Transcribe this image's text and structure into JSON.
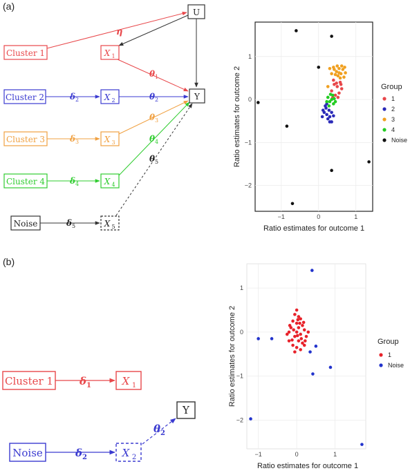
{
  "panels": [
    {
      "label": "(a)",
      "diagram": {
        "nodes": {
          "cluster1": "Cluster 1",
          "cluster2": "Cluster 2",
          "cluster3": "Cluster 3",
          "cluster4": "Cluster 4",
          "noise": "Noise",
          "x1": "X",
          "x1_sub": "1",
          "x2": "X",
          "x2_sub": "2",
          "x3": "X",
          "x3_sub": "3",
          "x4": "X",
          "x4_sub": "4",
          "x5": "X",
          "x5_sub": "5",
          "u": "U",
          "y": "Y"
        },
        "edge_labels": {
          "eta": "η",
          "delta2": "δ",
          "delta2_sub": "2",
          "delta3": "δ",
          "delta3_sub": "3",
          "delta4": "δ",
          "delta4_sub": "4",
          "delta5": "δ",
          "delta5_sub": "5",
          "theta1": "θ",
          "theta1_sub": "1",
          "theta2": "θ",
          "theta2_sub": "2",
          "theta3": "θ",
          "theta3_sub": "3",
          "theta4": "θ",
          "theta4_sub": "4",
          "theta5": "θ",
          "theta5_sub": "5"
        },
        "colors": {
          "cluster1": "#e8474a",
          "cluster2": "#3a3ad0",
          "cluster3": "#f0a040",
          "cluster4": "#2ecc2e",
          "noise": "#222222"
        }
      }
    },
    {
      "label": "(b)",
      "diagram": {
        "nodes": {
          "cluster1": "Cluster 1",
          "noise": "Noise",
          "x1": "X",
          "x1_sub": "1",
          "x2": "X",
          "x2_sub": "2",
          "y": "Y"
        },
        "edge_labels": {
          "delta1": "δ",
          "delta1_sub": "1",
          "delta2": "δ",
          "delta2_sub": "2",
          "theta2": "θ",
          "theta2_sub": "2"
        },
        "colors": {
          "cluster1": "#e8474a",
          "noise": "#3a3ad0"
        }
      }
    }
  ],
  "chart_data": [
    {
      "type": "scatter",
      "xlabel": "Ratio estimates for outcome 1",
      "ylabel": "Ratio estimates for outcome 2",
      "xlim": [
        -1.7,
        1.45
      ],
      "ylim": [
        -2.6,
        1.8
      ],
      "xticks": [
        -1,
        0,
        1
      ],
      "yticks": [
        1,
        0,
        -1,
        -2
      ],
      "legend_title": "Group",
      "series": [
        {
          "name": "1",
          "color": "#e8474a",
          "points": [
            [
              0.42,
              0.35
            ],
            [
              0.5,
              0.3
            ],
            [
              0.55,
              0.15
            ],
            [
              0.35,
              0.2
            ],
            [
              0.45,
              0.1
            ],
            [
              0.62,
              0.25
            ],
            [
              0.4,
              0.45
            ],
            [
              0.48,
              0.38
            ],
            [
              0.58,
              0.4
            ],
            [
              0.38,
              0.05
            ],
            [
              0.52,
              0.05
            ],
            [
              0.6,
              0.35
            ]
          ]
        },
        {
          "name": "2",
          "color": "#2a2ab8",
          "points": [
            [
              0.15,
              -0.3
            ],
            [
              0.22,
              -0.35
            ],
            [
              0.3,
              -0.4
            ],
            [
              0.2,
              -0.2
            ],
            [
              0.28,
              -0.25
            ],
            [
              0.1,
              -0.4
            ],
            [
              0.35,
              -0.3
            ],
            [
              0.25,
              -0.45
            ],
            [
              0.18,
              -0.15
            ],
            [
              0.4,
              -0.38
            ],
            [
              0.3,
              -0.52
            ],
            [
              0.35,
              -0.52
            ],
            [
              0.22,
              -0.1
            ],
            [
              0.12,
              -0.25
            ]
          ]
        },
        {
          "name": "3",
          "color": "#f0a020",
          "points": [
            [
              0.35,
              0.6
            ],
            [
              0.42,
              0.7
            ],
            [
              0.48,
              0.65
            ],
            [
              0.55,
              0.72
            ],
            [
              0.6,
              0.6
            ],
            [
              0.65,
              0.7
            ],
            [
              0.52,
              0.55
            ],
            [
              0.58,
              0.5
            ],
            [
              0.45,
              0.58
            ],
            [
              0.7,
              0.75
            ],
            [
              0.62,
              0.78
            ],
            [
              0.5,
              0.78
            ],
            [
              0.4,
              0.75
            ],
            [
              0.72,
              0.62
            ],
            [
              0.3,
              0.72
            ],
            [
              0.55,
              0.62
            ],
            [
              0.25,
              0.3
            ],
            [
              0.68,
              0.52
            ]
          ]
        },
        {
          "name": "4",
          "color": "#22cc22",
          "points": [
            [
              0.25,
              0.05
            ],
            [
              0.3,
              -0.05
            ],
            [
              0.35,
              0.0
            ],
            [
              0.4,
              -0.1
            ],
            [
              0.28,
              -0.15
            ],
            [
              0.45,
              -0.05
            ],
            [
              0.38,
              0.1
            ],
            [
              0.32,
              0.12
            ],
            [
              0.22,
              -0.05
            ],
            [
              0.42,
              0.02
            ]
          ]
        },
        {
          "name": "Noise",
          "color": "#111111",
          "points": [
            [
              -0.6,
              1.6
            ],
            [
              0.35,
              1.47
            ],
            [
              0.0,
              0.75
            ],
            [
              -1.62,
              -0.07
            ],
            [
              -0.85,
              -0.62
            ],
            [
              0.35,
              -1.65
            ],
            [
              1.35,
              -1.45
            ],
            [
              -0.7,
              -2.42
            ]
          ]
        }
      ]
    },
    {
      "type": "scatter",
      "xlabel": "Ratio estimates for outcome 1",
      "ylabel": "Ratio estimates for outcome 2",
      "xlim": [
        -1.3,
        1.8
      ],
      "ylim": [
        -2.65,
        1.55
      ],
      "xticks": [
        -1,
        0,
        1
      ],
      "yticks": [
        1,
        0,
        -1,
        -2
      ],
      "legend_title": "Group",
      "series": [
        {
          "name": "1",
          "color": "#e8222a",
          "points": [
            [
              0.0,
              0.5
            ],
            [
              -0.05,
              0.4
            ],
            [
              0.05,
              0.35
            ],
            [
              0.1,
              0.3
            ],
            [
              -0.1,
              0.25
            ],
            [
              0.0,
              0.2
            ],
            [
              0.15,
              0.15
            ],
            [
              -0.15,
              0.1
            ],
            [
              0.05,
              0.1
            ],
            [
              0.2,
              0.05
            ],
            [
              -0.2,
              0.0
            ],
            [
              0.0,
              0.0
            ],
            [
              0.1,
              -0.05
            ],
            [
              -0.05,
              -0.1
            ],
            [
              0.25,
              -0.1
            ],
            [
              -0.25,
              -0.05
            ],
            [
              0.05,
              -0.2
            ],
            [
              0.15,
              -0.25
            ],
            [
              -0.1,
              -0.3
            ],
            [
              0.0,
              -0.35
            ],
            [
              0.1,
              -0.4
            ],
            [
              -0.05,
              -0.45
            ],
            [
              0.2,
              -0.3
            ],
            [
              -0.2,
              -0.2
            ],
            [
              0.3,
              0.0
            ],
            [
              0.08,
              0.2
            ],
            [
              -0.08,
              0.05
            ],
            [
              0.12,
              -0.15
            ],
            [
              0.02,
              -0.08
            ],
            [
              -0.12,
              -0.18
            ],
            [
              0.18,
              0.22
            ],
            [
              0.22,
              -0.2
            ],
            [
              -0.18,
              0.15
            ],
            [
              0.03,
              0.28
            ]
          ]
        },
        {
          "name": "Noise",
          "color": "#2233cc",
          "points": [
            [
              0.4,
              1.4
            ],
            [
              -1.0,
              -0.15
            ],
            [
              -0.65,
              -0.15
            ],
            [
              0.5,
              -0.32
            ],
            [
              0.35,
              -0.45
            ],
            [
              0.88,
              -0.8
            ],
            [
              0.42,
              -0.95
            ],
            [
              -1.2,
              -1.97
            ],
            [
              1.7,
              -2.55
            ]
          ]
        }
      ]
    }
  ]
}
